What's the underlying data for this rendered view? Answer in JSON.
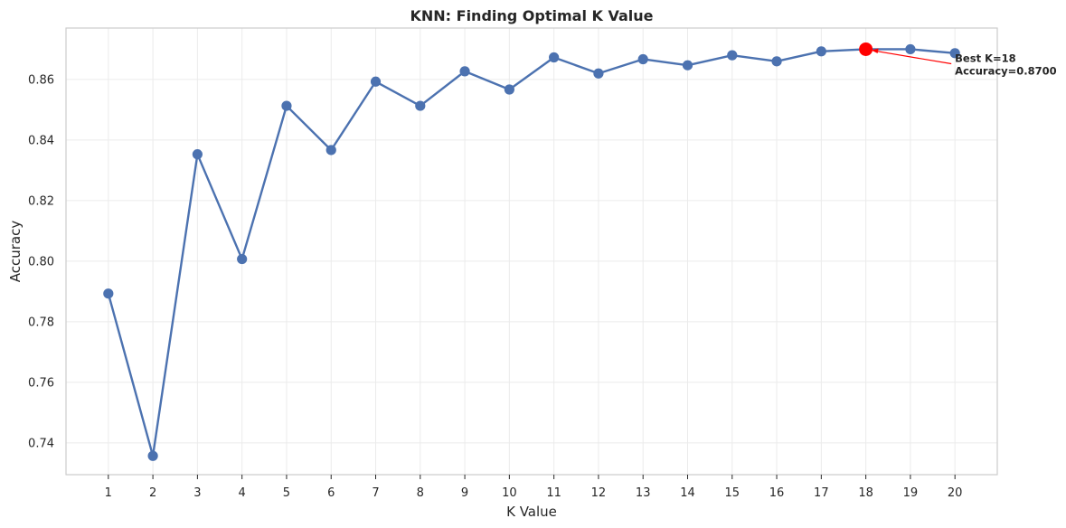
{
  "chart_data": {
    "type": "line",
    "title": "KNN: Finding Optimal K Value",
    "xlabel": "K Value",
    "ylabel": "Accuracy",
    "x": [
      1,
      2,
      3,
      4,
      5,
      6,
      7,
      8,
      9,
      10,
      11,
      12,
      13,
      14,
      15,
      16,
      17,
      18,
      19,
      20
    ],
    "x_tick_labels": [
      "1",
      "2",
      "3",
      "4",
      "5",
      "6",
      "7",
      "8",
      "9",
      "10",
      "11",
      "12",
      "13",
      "14",
      "15",
      "16",
      "17",
      "18",
      "19",
      "20"
    ],
    "series": [
      {
        "values": [
          0.7893,
          0.7357,
          0.8353,
          0.8007,
          0.8513,
          0.8367,
          0.8593,
          0.8513,
          0.8627,
          0.8567,
          0.8673,
          0.862,
          0.8667,
          0.8647,
          0.868,
          0.866,
          0.8693,
          0.87,
          0.87,
          0.8687
        ],
        "color": "#4c72b0"
      }
    ],
    "y_ticks": [
      0.74,
      0.76,
      0.78,
      0.8,
      0.82,
      0.84,
      0.86
    ],
    "y_tick_labels": [
      "0.74",
      "0.76",
      "0.78",
      "0.80",
      "0.82",
      "0.84",
      "0.86"
    ],
    "xlim": [
      0.05,
      20.95
    ],
    "ylim": [
      0.7295,
      0.877
    ],
    "grid": true,
    "highlight": {
      "x": 18,
      "y": 0.87,
      "color": "#ff0000",
      "label_line1": "Best K=18",
      "label_line2": "Accuracy=0.8700",
      "text_x": 20.0,
      "text_y": 0.8655
    }
  }
}
